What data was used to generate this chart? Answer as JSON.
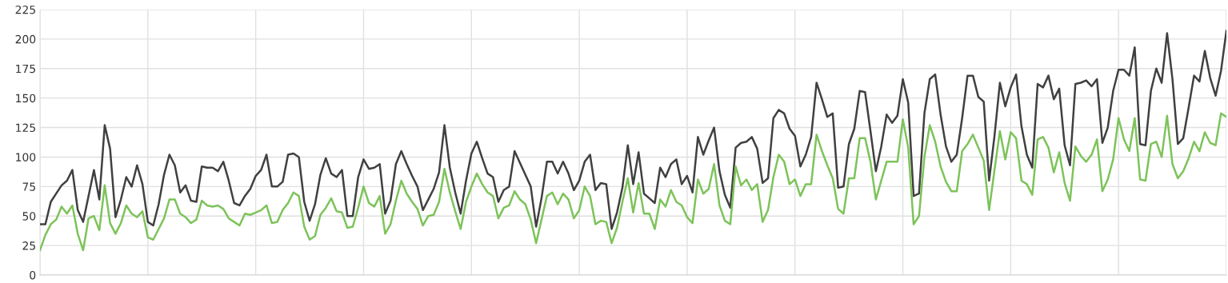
{
  "chart_data": {
    "type": "line",
    "categories": [
      null,
      null,
      null,
      null,
      null,
      null,
      null,
      null,
      null,
      null,
      null,
      null,
      null,
      null,
      null,
      null,
      null,
      null,
      null,
      null,
      null,
      null,
      null,
      null,
      null,
      null,
      null,
      null,
      null,
      null,
      null,
      null,
      null,
      null,
      null,
      null,
      null,
      null,
      null,
      null,
      null,
      null,
      null,
      null,
      null,
      null,
      null,
      null,
      null,
      null,
      null,
      null,
      null,
      null,
      null,
      null,
      null,
      null,
      null,
      null,
      null,
      null,
      null,
      null,
      null,
      null,
      null,
      null,
      null,
      null,
      null,
      null,
      null,
      null,
      null,
      null,
      null,
      null,
      null,
      null,
      null,
      null,
      null,
      null,
      null,
      null,
      null,
      null,
      null,
      null,
      null,
      null,
      null,
      null,
      null,
      null,
      null,
      null,
      null,
      null,
      null,
      null,
      null,
      null,
      null,
      null,
      null,
      null,
      null,
      null,
      null,
      null,
      null,
      null,
      null,
      null,
      null,
      null,
      null,
      null,
      null,
      null,
      null,
      null,
      null,
      null,
      null,
      null,
      null,
      null,
      null,
      null,
      null,
      null,
      null,
      null,
      null,
      null,
      null,
      null,
      null,
      null,
      null,
      null,
      null,
      null,
      null,
      null,
      null,
      null,
      null,
      null,
      null,
      null,
      null,
      null,
      null,
      null,
      null,
      null,
      null,
      null,
      null,
      null,
      null,
      null,
      null,
      null,
      null,
      null,
      null,
      null,
      null,
      null,
      null,
      null,
      null,
      null,
      null,
      null,
      null,
      null,
      null,
      null,
      null,
      null,
      null,
      null,
      null,
      null,
      null,
      null,
      null,
      null,
      null,
      null,
      null,
      null,
      null,
      null,
      null,
      null,
      null,
      null,
      null,
      null,
      null,
      null,
      null,
      null,
      null,
      null,
      null,
      null,
      null,
      null,
      null,
      null,
      null,
      null,
      null
    ],
    "series": [
      {
        "color": "#404040",
        "values": [
          43,
          43,
          62,
          69,
          76,
          80,
          89,
          55,
          45,
          67,
          89,
          64,
          127,
          107,
          49,
          64,
          83,
          75,
          93,
          77,
          45,
          42,
          60,
          85,
          102,
          93,
          70,
          76,
          63,
          62,
          92,
          91,
          91,
          88,
          96,
          80,
          61,
          59,
          67,
          73,
          84,
          89,
          102,
          75,
          75,
          79,
          102,
          103,
          100,
          62,
          46,
          60,
          85,
          99,
          86,
          83,
          89,
          50,
          50,
          83,
          98,
          90,
          91,
          94,
          52,
          63,
          94,
          105,
          94,
          84,
          75,
          55,
          64,
          73,
          87,
          127,
          91,
          70,
          52,
          80,
          103,
          113,
          99,
          86,
          83,
          62,
          72,
          75,
          105,
          95,
          85,
          75,
          41,
          65,
          96,
          96,
          86,
          96,
          86,
          72,
          80,
          96,
          102,
          72,
          78,
          77,
          39,
          53,
          74,
          110,
          77,
          104,
          69,
          65,
          61,
          91,
          83,
          94,
          98,
          77,
          84,
          70,
          117,
          102,
          114,
          125,
          88,
          68,
          57,
          108,
          112,
          113,
          117,
          107,
          78,
          82,
          133,
          140,
          137,
          124,
          118,
          92,
          102,
          117,
          163,
          149,
          134,
          137,
          74,
          75,
          111,
          124,
          156,
          155,
          122,
          88,
          109,
          136,
          129,
          135,
          166,
          146,
          67,
          69,
          137,
          166,
          170,
          136,
          109,
          96,
          102,
          133,
          169,
          169,
          151,
          147,
          80,
          118,
          163,
          143,
          159,
          170,
          126,
          102,
          91,
          162,
          159,
          169,
          149,
          158,
          110,
          93,
          162,
          163,
          165,
          160,
          166,
          112,
          125,
          156,
          174,
          174,
          169,
          193,
          111,
          110,
          156,
          175,
          163,
          205,
          166,
          111,
          116,
          142,
          169,
          164,
          190,
          167,
          152,
          173,
          207
        ]
      },
      {
        "color": "#7dc35a",
        "values": [
          21,
          34,
          43,
          47,
          58,
          52,
          59,
          35,
          21,
          48,
          50,
          38,
          76,
          44,
          35,
          44,
          59,
          52,
          49,
          54,
          32,
          30,
          39,
          48,
          64,
          64,
          52,
          49,
          44,
          47,
          63,
          59,
          58,
          59,
          56,
          48,
          45,
          42,
          52,
          51,
          53,
          55,
          59,
          44,
          45,
          55,
          61,
          70,
          67,
          41,
          30,
          33,
          51,
          57,
          65,
          54,
          53,
          40,
          41,
          57,
          75,
          61,
          58,
          67,
          35,
          43,
          63,
          80,
          69,
          62,
          56,
          42,
          50,
          51,
          62,
          90,
          70,
          54,
          39,
          62,
          75,
          86,
          77,
          70,
          67,
          48,
          57,
          59,
          71,
          64,
          60,
          47,
          27,
          47,
          67,
          70,
          60,
          69,
          64,
          48,
          55,
          75,
          67,
          43,
          46,
          45,
          27,
          40,
          62,
          82,
          53,
          78,
          52,
          52,
          39,
          64,
          58,
          72,
          62,
          59,
          49,
          44,
          81,
          69,
          73,
          94,
          59,
          46,
          43,
          92,
          76,
          81,
          72,
          77,
          45,
          55,
          83,
          102,
          96,
          77,
          81,
          67,
          77,
          77,
          119,
          105,
          93,
          82,
          56,
          52,
          82,
          82,
          116,
          116,
          96,
          64,
          80,
          96,
          96,
          96,
          132,
          108,
          43,
          50,
          100,
          127,
          113,
          92,
          79,
          71,
          71,
          105,
          111,
          119,
          108,
          97,
          55,
          89,
          122,
          98,
          121,
          116,
          80,
          77,
          68,
          115,
          117,
          108,
          87,
          104,
          78,
          63,
          109,
          101,
          96,
          102,
          115,
          71,
          81,
          98,
          133,
          115,
          105,
          133,
          81,
          80,
          111,
          113,
          100,
          135,
          94,
          82,
          88,
          99,
          113,
          105,
          121,
          112,
          110,
          137,
          134
        ]
      }
    ],
    "ylim": [
      0,
      225
    ],
    "yticks": [
      0,
      25,
      50,
      75,
      100,
      125,
      150,
      175,
      200,
      225
    ],
    "grid": true,
    "tick_labels": "y",
    "line_style": "solid"
  }
}
